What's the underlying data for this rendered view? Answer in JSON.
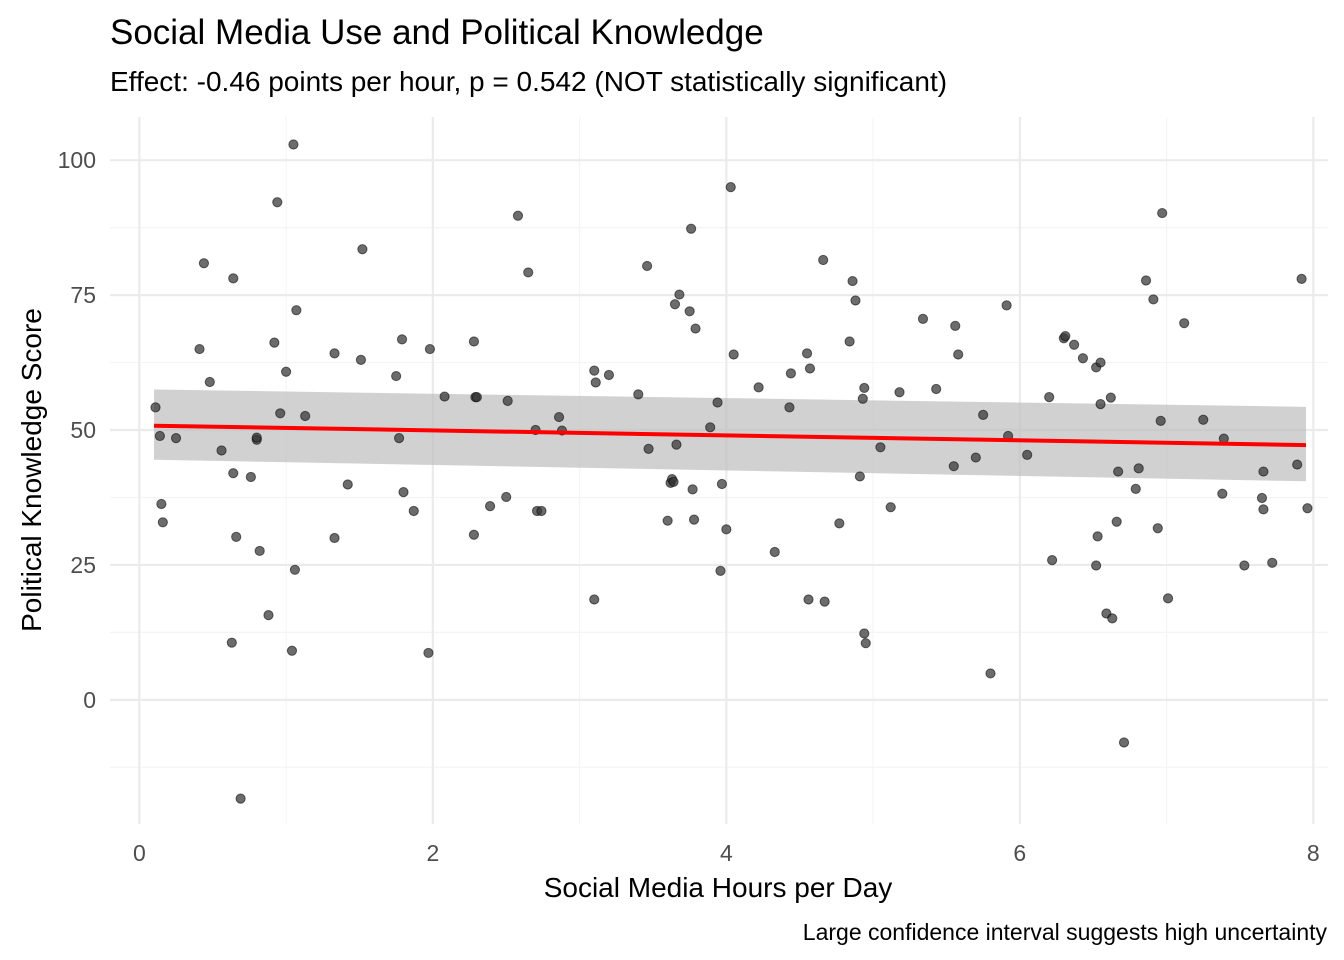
{
  "chart_data": {
    "type": "scatter",
    "title": "Social Media Use and Political Knowledge",
    "subtitle": "Effect: -0.46 points per hour, p = 0.542 (NOT statistically significant)",
    "xlabel": "Social Media Hours per Day",
    "ylabel": "Political Knowledge Score",
    "caption": "Large confidence interval suggests high uncertainty",
    "xlim": [
      -0.2,
      8.1
    ],
    "ylim": [
      -23,
      108
    ],
    "x_ticks": [
      0,
      2,
      4,
      6,
      8
    ],
    "x_tick_labels": [
      "0",
      "2",
      "4",
      "6",
      "8"
    ],
    "y_ticks": [
      0,
      25,
      50,
      75,
      100
    ],
    "y_tick_labels": [
      "0",
      "25",
      "50",
      "75",
      "100"
    ],
    "grid": true,
    "colors": {
      "points": "#333333",
      "fit_line": "#ff0000",
      "confidence_band": "#bebebe",
      "grid_major": "#ebebeb",
      "grid_minor": "#f4f4f4",
      "text": "#000000",
      "tick_text": "#4d4d4d"
    },
    "fit": {
      "x": [
        0.1,
        7.95
      ],
      "y": [
        50.8,
        47.2
      ],
      "ci_lower": [
        44.5,
        40.5
      ],
      "ci_upper": [
        57.5,
        54.3
      ]
    },
    "points": [
      [
        0.11,
        54.2
      ],
      [
        0.14,
        48.9
      ],
      [
        0.15,
        36.3
      ],
      [
        0.16,
        32.9
      ],
      [
        0.25,
        48.5
      ],
      [
        0.41,
        65
      ],
      [
        0.44,
        80.9
      ],
      [
        0.48,
        58.9
      ],
      [
        0.56,
        46.2
      ],
      [
        0.63,
        10.6
      ],
      [
        0.64,
        42
      ],
      [
        0.64,
        78.1
      ],
      [
        0.66,
        30.2
      ],
      [
        0.69,
        -18.3
      ],
      [
        0.76,
        41.3
      ],
      [
        0.8,
        48.2
      ],
      [
        0.8,
        48.6
      ],
      [
        0.82,
        27.6
      ],
      [
        0.88,
        15.7
      ],
      [
        0.92,
        66.2
      ],
      [
        0.94,
        92.2
      ],
      [
        0.96,
        53.1
      ],
      [
        1.0,
        60.8
      ],
      [
        1.04,
        9.1
      ],
      [
        1.05,
        102.9
      ],
      [
        1.06,
        24.1
      ],
      [
        1.07,
        72.2
      ],
      [
        1.13,
        52.6
      ],
      [
        1.33,
        30
      ],
      [
        1.33,
        64.2
      ],
      [
        1.42,
        39.9
      ],
      [
        1.51,
        63
      ],
      [
        1.52,
        83.5
      ],
      [
        1.75,
        60
      ],
      [
        1.77,
        48.5
      ],
      [
        1.79,
        66.8
      ],
      [
        1.8,
        38.5
      ],
      [
        1.87,
        35
      ],
      [
        1.97,
        8.7
      ],
      [
        1.98,
        65
      ],
      [
        2.08,
        56.2
      ],
      [
        2.28,
        30.6
      ],
      [
        2.28,
        66.4
      ],
      [
        2.29,
        56.1
      ],
      [
        2.3,
        56.1
      ],
      [
        2.39,
        35.9
      ],
      [
        2.5,
        37.6
      ],
      [
        2.51,
        55.4
      ],
      [
        2.58,
        89.7
      ],
      [
        2.65,
        79.2
      ],
      [
        2.7,
        50
      ],
      [
        2.71,
        35
      ],
      [
        2.74,
        35
      ],
      [
        2.86,
        52.4
      ],
      [
        2.88,
        49.9
      ],
      [
        3.1,
        61
      ],
      [
        3.1,
        18.6
      ],
      [
        3.11,
        58.8
      ],
      [
        3.2,
        60.2
      ],
      [
        3.4,
        56.6
      ],
      [
        3.46,
        80.4
      ],
      [
        3.47,
        46.5
      ],
      [
        3.6,
        33.2
      ],
      [
        3.62,
        40.2
      ],
      [
        3.63,
        40.9
      ],
      [
        3.64,
        40.4
      ],
      [
        3.65,
        73.3
      ],
      [
        3.66,
        47.3
      ],
      [
        3.68,
        75.1
      ],
      [
        3.75,
        72
      ],
      [
        3.76,
        87.3
      ],
      [
        3.77,
        39
      ],
      [
        3.78,
        33.4
      ],
      [
        3.79,
        68.8
      ],
      [
        3.89,
        50.5
      ],
      [
        3.94,
        55.1
      ],
      [
        3.96,
        23.9
      ],
      [
        3.97,
        40
      ],
      [
        4.0,
        31.6
      ],
      [
        4.03,
        95
      ],
      [
        4.05,
        64
      ],
      [
        4.22,
        57.9
      ],
      [
        4.33,
        27.4
      ],
      [
        4.43,
        54.2
      ],
      [
        4.44,
        60.5
      ],
      [
        4.55,
        64.2
      ],
      [
        4.56,
        18.6
      ],
      [
        4.57,
        61.4
      ],
      [
        4.66,
        81.5
      ],
      [
        4.67,
        18.2
      ],
      [
        4.77,
        32.7
      ],
      [
        4.84,
        66.4
      ],
      [
        4.86,
        77.6
      ],
      [
        4.88,
        74
      ],
      [
        4.91,
        41.4
      ],
      [
        4.93,
        55.8
      ],
      [
        4.94,
        57.8
      ],
      [
        4.94,
        12.3
      ],
      [
        4.95,
        10.5
      ],
      [
        5.05,
        46.8
      ],
      [
        5.12,
        35.7
      ],
      [
        5.18,
        57
      ],
      [
        5.34,
        70.6
      ],
      [
        5.43,
        57.6
      ],
      [
        5.55,
        43.3
      ],
      [
        5.56,
        69.3
      ],
      [
        5.58,
        64
      ],
      [
        5.7,
        44.9
      ],
      [
        5.75,
        52.8
      ],
      [
        5.8,
        4.9
      ],
      [
        5.91,
        73.1
      ],
      [
        5.92,
        48.9
      ],
      [
        6.05,
        45.4
      ],
      [
        6.2,
        56.1
      ],
      [
        6.22,
        25.9
      ],
      [
        6.3,
        67
      ],
      [
        6.31,
        67.4
      ],
      [
        6.37,
        65.8
      ],
      [
        6.43,
        63.3
      ],
      [
        6.52,
        61.6
      ],
      [
        6.52,
        24.9
      ],
      [
        6.53,
        30.3
      ],
      [
        6.55,
        62.5
      ],
      [
        6.55,
        54.8
      ],
      [
        6.59,
        16
      ],
      [
        6.62,
        56
      ],
      [
        6.63,
        15.1
      ],
      [
        6.66,
        33
      ],
      [
        6.67,
        42.3
      ],
      [
        6.71,
        -7.9
      ],
      [
        6.79,
        39.1
      ],
      [
        6.81,
        42.9
      ],
      [
        6.86,
        77.7
      ],
      [
        6.91,
        74.2
      ],
      [
        6.94,
        31.8
      ],
      [
        6.96,
        51.7
      ],
      [
        6.97,
        90.2
      ],
      [
        7.01,
        18.8
      ],
      [
        7.12,
        69.8
      ],
      [
        7.25,
        51.9
      ],
      [
        7.38,
        38.2
      ],
      [
        7.39,
        48.4
      ],
      [
        7.53,
        24.9
      ],
      [
        7.65,
        37.4
      ],
      [
        7.66,
        35.3
      ],
      [
        7.66,
        42.3
      ],
      [
        7.72,
        25.4
      ],
      [
        7.89,
        43.6
      ],
      [
        7.92,
        78
      ],
      [
        7.96,
        35.5
      ]
    ]
  }
}
